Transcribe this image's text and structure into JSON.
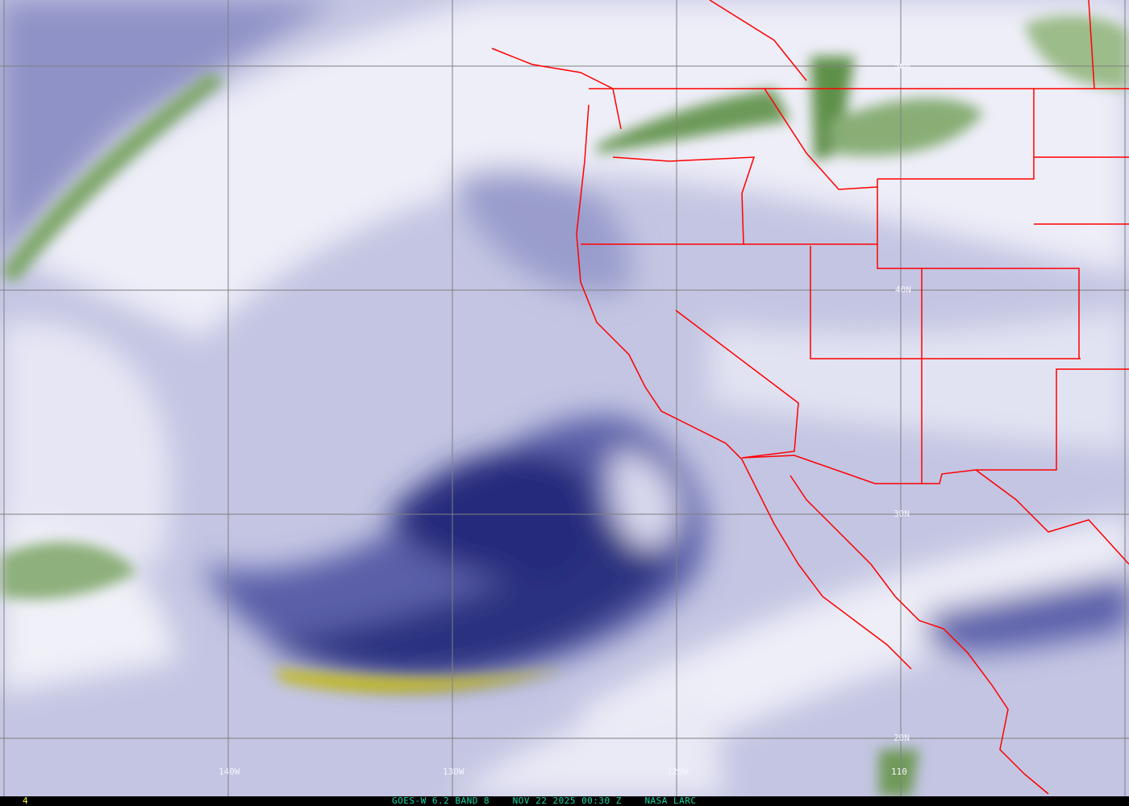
{
  "image": {
    "type": "satellite water vapor imagery",
    "caption": {
      "satellite": "GOES-W 6.2 BAND 8",
      "datetime": "NOV 22 2025 00:30 Z",
      "source": "NASA LARC"
    },
    "frame_number": "4",
    "latitude_labels": [
      "50N",
      "40N",
      "30N",
      "20N"
    ],
    "longitude_labels": [
      "140W",
      "130W",
      "120W",
      "110"
    ],
    "colors": {
      "moist": "#f4f4fa",
      "mid": "#9c9ecb",
      "dry": "#1c2272",
      "very_dry": "#c8c020",
      "cold_cloud": "#6f9a58",
      "borders": "#ff0000",
      "grid": "#808080",
      "caption_text": "#19d6a6",
      "frame_text": "#ffff33"
    }
  }
}
